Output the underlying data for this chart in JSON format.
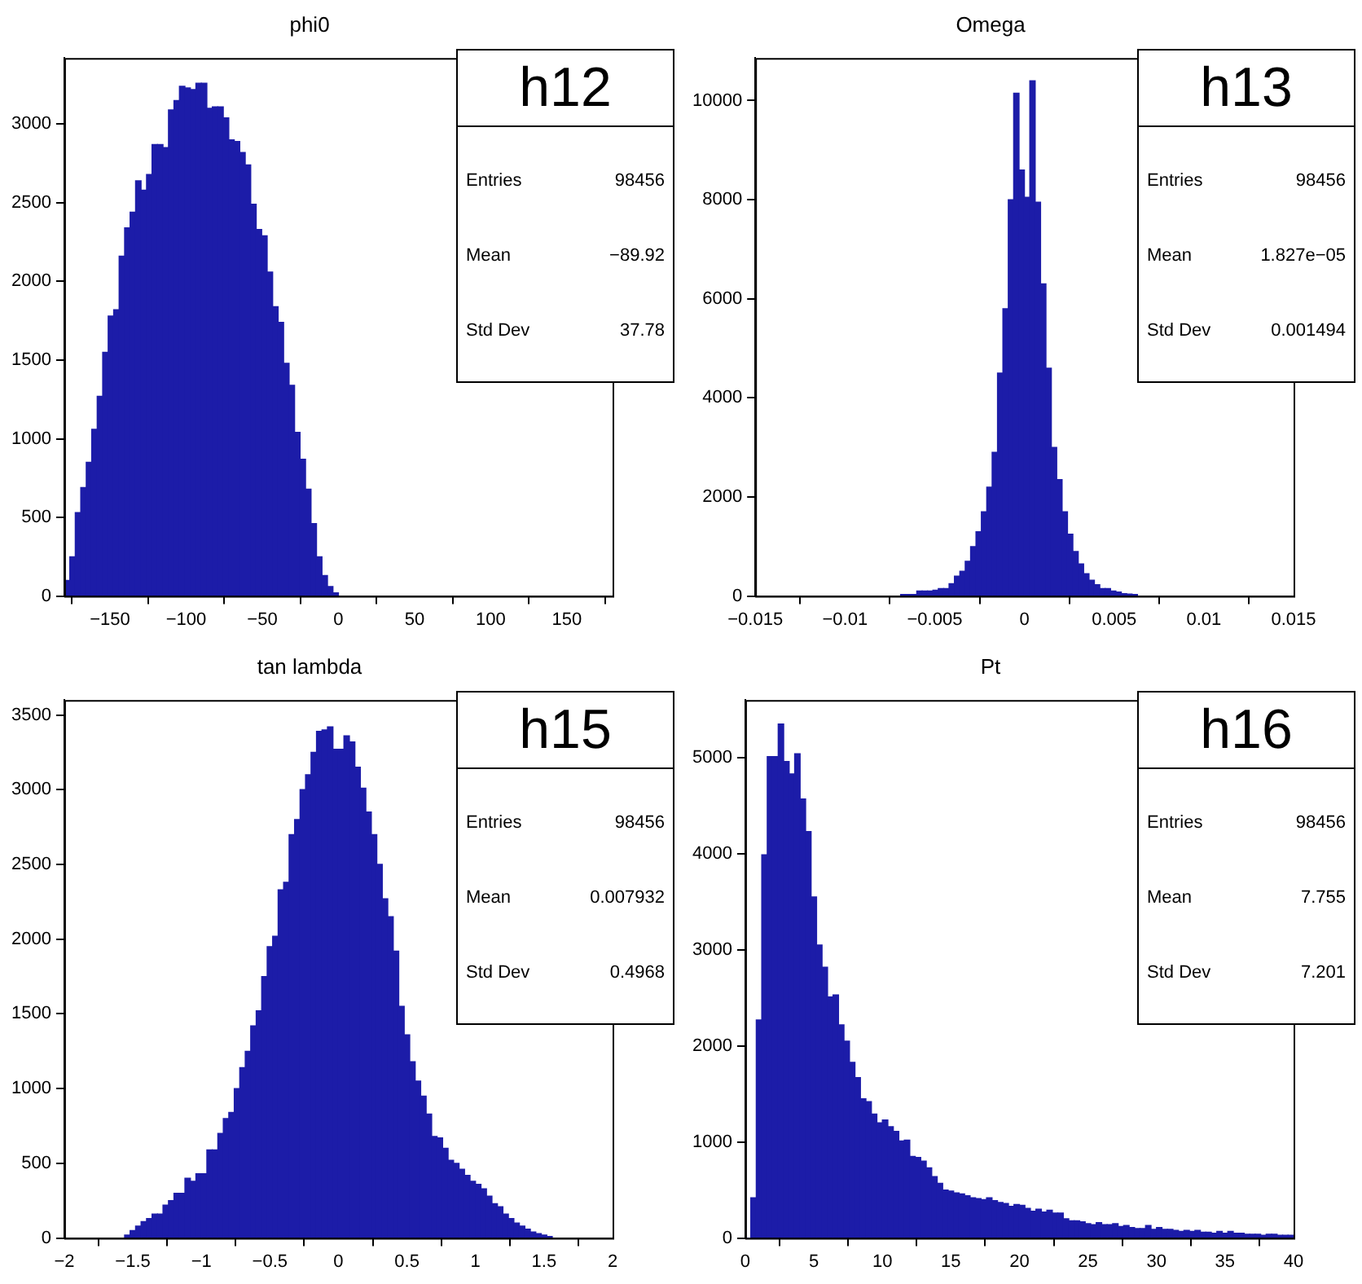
{
  "chart_data": [
    {
      "type": "histogram",
      "title": "phi0",
      "color": "#1c1ca8",
      "xlim": [
        -180,
        180
      ],
      "ylim": [
        0,
        3420
      ],
      "xticks": [
        -150,
        -100,
        -50,
        0,
        50,
        100,
        150
      ],
      "yticks": [
        0,
        500,
        1000,
        1500,
        2000,
        2500,
        3000
      ],
      "bins": [
        -180,
        -176.4,
        -172.8,
        -169.2,
        -165.6,
        -162,
        -158.4,
        -154.8,
        -151.2,
        -147.6,
        -144,
        -140.4,
        -136.8,
        -133.2,
        -129.6,
        -126,
        -122.4,
        -118.8,
        -115.2,
        -111.6,
        -108,
        -104.4,
        -100.8,
        -97.2,
        -93.6,
        -90,
        -86.4,
        -82.8,
        -79.2,
        -75.6,
        -72,
        -68.4,
        -64.8,
        -61.2,
        -57.6,
        -54,
        -50.4,
        -46.8,
        -43.2,
        -39.6,
        -36,
        -32.4,
        -28.8,
        -25.2,
        -21.6,
        -18,
        -14.4,
        -10.8,
        -7.2,
        -3.6,
        0
      ],
      "values": [
        100,
        250,
        530,
        690,
        850,
        1060,
        1270,
        1550,
        1780,
        1820,
        2160,
        2340,
        2440,
        2640,
        2580,
        2680,
        2870,
        2870,
        2850,
        3090,
        3150,
        3240,
        3230,
        3220,
        3260,
        3260,
        3100,
        3110,
        3110,
        3040,
        2900,
        2890,
        2820,
        2740,
        2490,
        2330,
        2290,
        2060,
        1840,
        1740,
        1480,
        1340,
        1040,
        870,
        680,
        460,
        250,
        130,
        60,
        20
      ],
      "annotations": [
        "h12",
        "Entries",
        "98456",
        "Mean",
        "−89.92",
        "Std Dev",
        "37.78"
      ]
    },
    {
      "type": "histogram",
      "title": "Omega",
      "color": "#1c1ca8",
      "xlim": [
        -0.015,
        0.015
      ],
      "ylim": [
        0,
        10860
      ],
      "xticks": [
        -0.015,
        -0.01,
        -0.005,
        0,
        0.005,
        0.01,
        0.015
      ],
      "yticks": [
        0,
        2000,
        4000,
        6000,
        8000,
        10000
      ],
      "bins": [
        -0.0069,
        -0.0066,
        -0.0063,
        -0.006,
        -0.0057,
        -0.0054,
        -0.0051,
        -0.0048,
        -0.0045,
        -0.0042,
        -0.0039,
        -0.0036,
        -0.0033,
        -0.003,
        -0.0027,
        -0.0024,
        -0.0021,
        -0.0018,
        -0.0015,
        -0.0012,
        -0.0009,
        -0.0006,
        -0.0003,
        0,
        0.0003,
        0.0006,
        0.0009,
        0.0012,
        0.0015,
        0.0018,
        0.0021,
        0.0024,
        0.0027,
        0.003,
        0.0033,
        0.0036,
        0.0039,
        0.0042,
        0.0045,
        0.0048,
        0.0051,
        0.0054,
        0.0057,
        0.006,
        0.0063
      ],
      "values": [
        30,
        30,
        30,
        100,
        100,
        100,
        120,
        150,
        150,
        250,
        400,
        500,
        700,
        1000,
        1300,
        1700,
        2200,
        2900,
        4500,
        5800,
        8000,
        10150,
        8600,
        8050,
        10400,
        7950,
        6300,
        4600,
        3000,
        2350,
        1700,
        1250,
        900,
        650,
        450,
        320,
        230,
        150,
        150,
        100,
        80,
        50,
        40,
        30
      ],
      "annotations": [
        "h13",
        "Entries",
        "98456",
        "Mean",
        "1.827e−05",
        "Std Dev",
        "0.001494"
      ]
    },
    {
      "type": "histogram",
      "title": "tan lambda",
      "color": "#1c1ca8",
      "xlim": [
        -2,
        2
      ],
      "ylim": [
        0,
        3600
      ],
      "xticks": [
        -2,
        -1.5,
        -1,
        -0.5,
        0,
        0.5,
        1,
        1.5,
        2
      ],
      "yticks": [
        0,
        500,
        1000,
        1500,
        2000,
        2500,
        3000,
        3500
      ],
      "bins": [
        -1.56,
        -1.52,
        -1.48,
        -1.44,
        -1.4,
        -1.36,
        -1.32,
        -1.28,
        -1.24,
        -1.2,
        -1.16,
        -1.12,
        -1.08,
        -1.04,
        -1,
        -0.96,
        -0.92,
        -0.88,
        -0.84,
        -0.8,
        -0.76,
        -0.72,
        -0.68,
        -0.64,
        -0.6,
        -0.56,
        -0.52,
        -0.48,
        -0.44,
        -0.4,
        -0.36,
        -0.32,
        -0.28,
        -0.24,
        -0.2,
        -0.16,
        -0.12,
        -0.08,
        -0.04,
        0,
        0.04,
        0.08,
        0.12,
        0.16,
        0.2,
        0.24,
        0.28,
        0.32,
        0.36,
        0.4,
        0.44,
        0.48,
        0.52,
        0.56,
        0.6,
        0.64,
        0.68,
        0.72,
        0.76,
        0.8,
        0.84,
        0.88,
        0.92,
        0.96,
        1,
        1.04,
        1.08,
        1.12,
        1.16,
        1.2,
        1.24,
        1.28,
        1.32,
        1.36,
        1.4,
        1.44,
        1.48,
        1.52,
        1.56
      ],
      "values": [
        20,
        50,
        80,
        110,
        130,
        160,
        160,
        220,
        250,
        300,
        300,
        400,
        380,
        430,
        430,
        590,
        590,
        700,
        800,
        840,
        1000,
        1140,
        1250,
        1420,
        1520,
        1750,
        1950,
        2020,
        2330,
        2380,
        2700,
        2800,
        3000,
        3100,
        3250,
        3390,
        3400,
        3420,
        3270,
        3270,
        3360,
        3320,
        3150,
        3010,
        2850,
        2700,
        2500,
        2270,
        2150,
        1920,
        1550,
        1360,
        1180,
        1050,
        950,
        830,
        680,
        670,
        600,
        520,
        500,
        460,
        420,
        380,
        360,
        330,
        280,
        230,
        210,
        160,
        130,
        100,
        80,
        60,
        40,
        30,
        20,
        10
      ],
      "annotations": [
        "h15",
        "Entries",
        "98456",
        "Mean",
        "0.007932",
        "Std Dev",
        "0.4968"
      ]
    },
    {
      "type": "histogram",
      "title": "Pt",
      "color": "#1c1ca8",
      "xlim": [
        0,
        40
      ],
      "ylim": [
        0,
        5600
      ],
      "xticks": [
        0,
        5,
        10,
        15,
        20,
        25,
        30,
        35,
        40
      ],
      "yticks": [
        0,
        1000,
        2000,
        3000,
        4000,
        5000
      ],
      "bins": [
        0,
        0.4,
        0.8,
        1.2,
        1.6,
        2,
        2.4,
        2.8,
        3.2,
        3.6,
        4,
        4.4,
        4.8,
        5.2,
        5.6,
        6,
        6.4,
        6.8,
        7.2,
        7.6,
        8,
        8.4,
        8.8,
        9.2,
        9.6,
        10,
        10.4,
        10.8,
        11.2,
        11.6,
        12,
        12.4,
        12.8,
        13.2,
        13.6,
        14,
        14.4,
        14.8,
        15.2,
        15.6,
        16,
        16.4,
        16.8,
        17.2,
        17.6,
        18,
        18.4,
        18.8,
        19.2,
        19.6,
        20,
        20.4,
        20.8,
        21.2,
        21.6,
        22,
        22.4,
        22.8,
        23.2,
        23.6,
        24,
        24.4,
        24.8,
        25.2,
        25.6,
        26,
        26.4,
        26.8,
        27.2,
        27.6,
        28,
        28.4,
        28.8,
        29.2,
        29.6,
        30,
        30.4,
        30.8,
        31.2,
        31.6,
        32,
        32.4,
        32.8,
        33.2,
        33.6,
        34,
        34.4,
        34.8,
        35.2,
        35.6,
        36,
        36.4,
        36.8,
        37.2,
        37.6,
        38,
        38.4,
        38.8,
        39.2,
        39.6,
        40
      ],
      "values": [
        0,
        420,
        2270,
        3990,
        5010,
        5010,
        5350,
        4960,
        4830,
        5040,
        4570,
        4230,
        3550,
        3050,
        2820,
        2510,
        2530,
        2220,
        2050,
        1830,
        1670,
        1450,
        1420,
        1290,
        1200,
        1230,
        1160,
        1110,
        1010,
        1020,
        850,
        840,
        800,
        730,
        640,
        570,
        500,
        490,
        470,
        460,
        440,
        420,
        410,
        400,
        420,
        390,
        370,
        360,
        330,
        350,
        340,
        310,
        280,
        300,
        270,
        290,
        260,
        260,
        200,
        180,
        180,
        170,
        150,
        140,
        160,
        140,
        140,
        150,
        120,
        130,
        110,
        100,
        100,
        130,
        90,
        110,
        90,
        90,
        80,
        70,
        80,
        70,
        80,
        60,
        60,
        50,
        70,
        50,
        70,
        50,
        50,
        40,
        40,
        40,
        30,
        40,
        40,
        30,
        30,
        30
      ],
      "annotations": [
        "h16",
        "Entries",
        "98456",
        "Mean",
        "7.755",
        "Std Dev",
        "7.201"
      ]
    }
  ]
}
